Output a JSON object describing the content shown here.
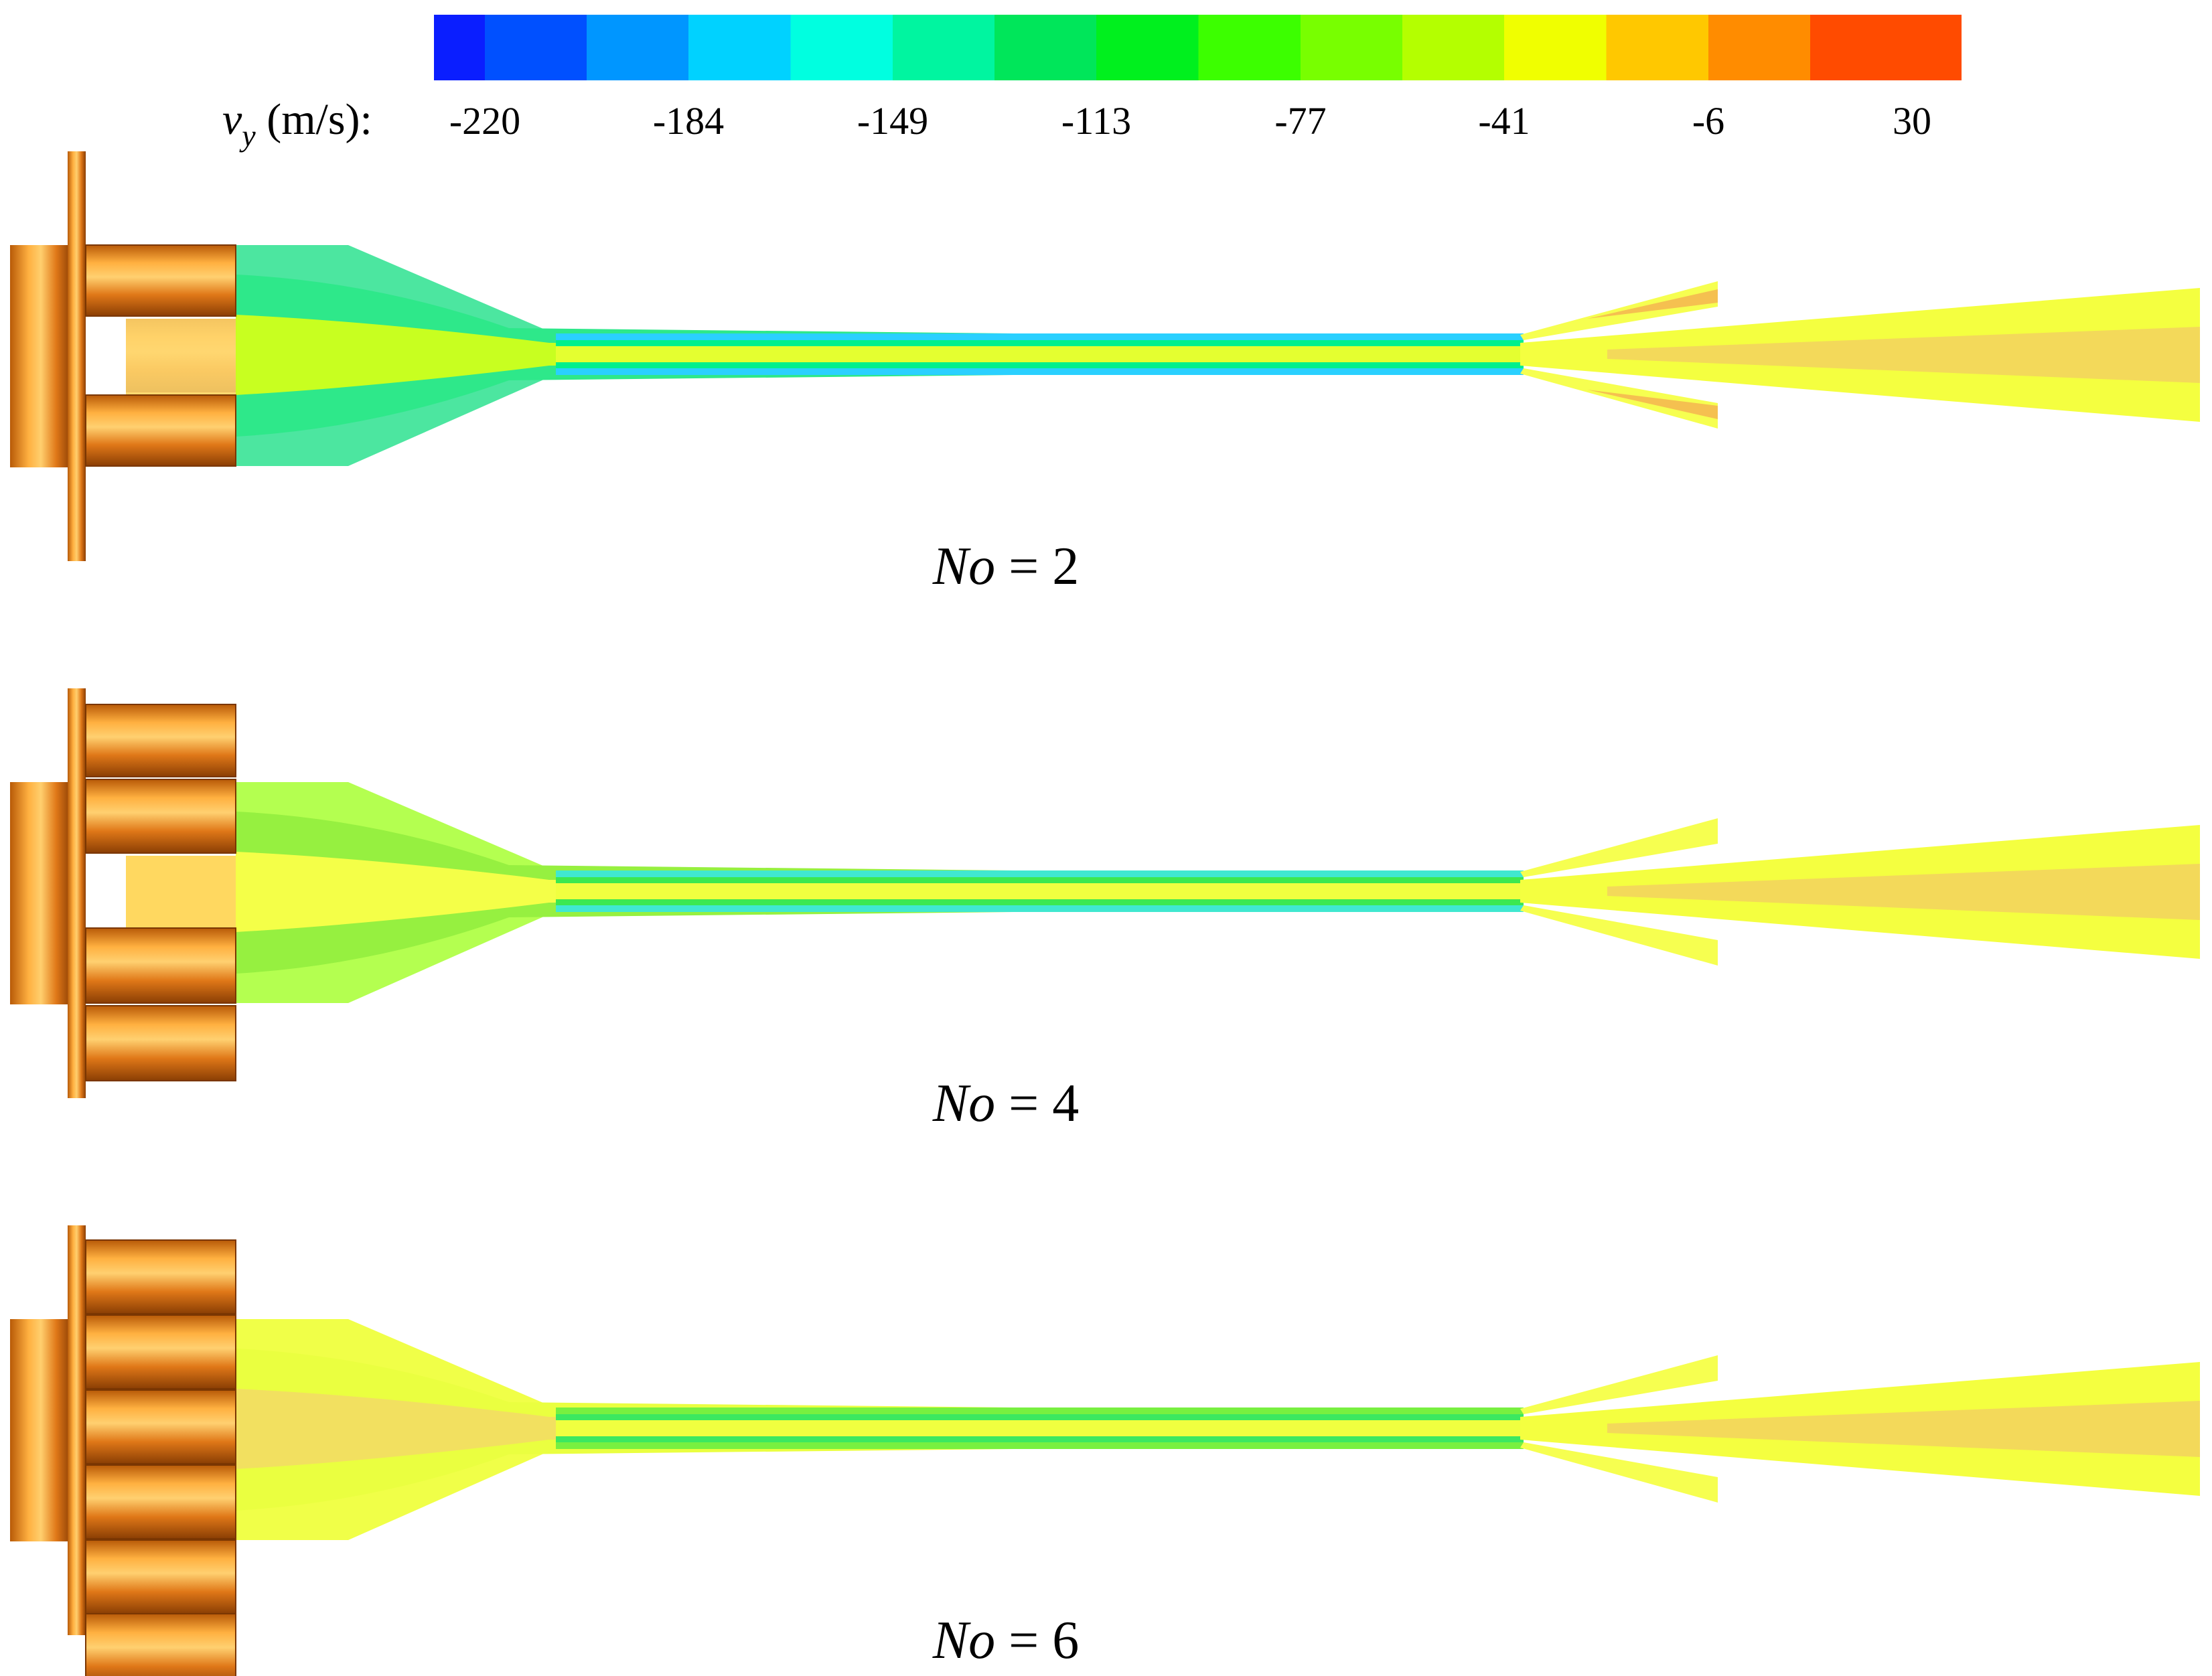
{
  "colorbar": {
    "variable": "v",
    "subscript": "y",
    "unit": " (m/s):",
    "ticks": [
      "-220",
      "-184",
      "-149",
      "-113",
      "-77",
      "-41",
      "-6",
      "30"
    ],
    "colors": [
      "#0a1eff",
      "#0050ff",
      "#0096ff",
      "#00d2ff",
      "#00ffe0",
      "#00f5a0",
      "#00e65a",
      "#00f01e",
      "#3cff00",
      "#78ff00",
      "#b4ff00",
      "#f0ff00",
      "#ffc800",
      "#ff8c00",
      "#ff4b00",
      "#ff0f0f"
    ]
  },
  "cases": [
    {
      "label_var": "No",
      "label_rest": " = 2",
      "outer_fluid": "#4ce6a0",
      "mid_fluid": "#2ee88a",
      "core_fluid": "#c8ff20",
      "channel_edge": "#2ad0ff",
      "channel_mid": "#00f08c",
      "channel_core": "#e4ff30",
      "plume_main": "#f4ff40",
      "plume_core": "#f2d060",
      "side_jet": "#f6ff50",
      "side_jet_core": "#f5c050",
      "bore_fill": "#ffd870"
    },
    {
      "label_var": "No",
      "label_rest": " = 4",
      "outer_fluid": "#b4ff50",
      "mid_fluid": "#96f040",
      "core_fluid": "#f4ff48",
      "channel_edge": "#40e8d0",
      "channel_mid": "#3ce850",
      "channel_core": "#f0ff40",
      "plume_main": "#f4ff40",
      "plume_core": "#f2d060",
      "side_jet": "#f6ff50",
      "side_jet_core": "#f6ff50",
      "bore_fill": "#ffd860"
    },
    {
      "label_var": "No",
      "label_rest": " = 6",
      "outer_fluid": "#f0ff48",
      "mid_fluid": "#eaff40",
      "core_fluid": "#f2e060",
      "channel_edge": "#78f040",
      "channel_mid": "#3ce860",
      "channel_core": "#f0ff40",
      "plume_main": "#f4ff40",
      "plume_core": "#f2d060",
      "side_jet": "#f6ff50",
      "side_jet_core": "#f6ff50",
      "bore_fill": "#f59820"
    }
  ]
}
